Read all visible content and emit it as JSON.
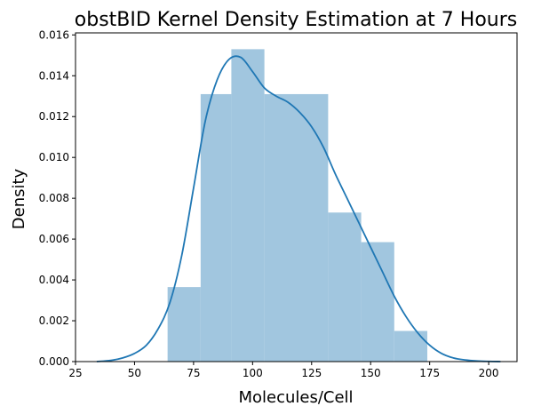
{
  "chart_data": {
    "type": "bar",
    "title": "obstBID Kernel Density Estimation at 7 Hours",
    "xlabel": "Molecules/Cell",
    "ylabel": "Density",
    "xlim": [
      25,
      212
    ],
    "ylim": [
      0,
      0.0161
    ],
    "x_ticks": [
      25,
      50,
      75,
      100,
      125,
      150,
      175,
      200
    ],
    "x_tick_labels": [
      "25",
      "50",
      "75",
      "100",
      "125",
      "150",
      "175",
      "200"
    ],
    "y_ticks": [
      0,
      0.002,
      0.004,
      0.006,
      0.008,
      0.01,
      0.012,
      0.014,
      0.016
    ],
    "y_tick_labels": [
      "0.000",
      "0.002",
      "0.004",
      "0.006",
      "0.008",
      "0.010",
      "0.012",
      "0.014",
      "0.016"
    ],
    "grid": false,
    "histogram": {
      "bins": [
        {
          "x0": 64,
          "x1": 78,
          "density": 0.00365
        },
        {
          "x0": 78,
          "x1": 91,
          "density": 0.0131
        },
        {
          "x0": 91,
          "x1": 105,
          "density": 0.0153
        },
        {
          "x0": 105,
          "x1": 132,
          "density": 0.0131
        },
        {
          "x0": 132,
          "x1": 146,
          "density": 0.0073
        },
        {
          "x0": 146,
          "x1": 160,
          "density": 0.00585
        },
        {
          "x0": 160,
          "x1": 174,
          "density": 0.0015
        }
      ],
      "color": "#a1c6df"
    },
    "kde": {
      "color": "#1f77b4",
      "x": [
        34,
        40,
        45,
        50,
        55,
        60,
        65,
        70,
        75,
        80,
        85,
        90,
        95,
        100,
        105,
        110,
        115,
        120,
        125,
        130,
        135,
        140,
        145,
        150,
        155,
        160,
        165,
        170,
        175,
        180,
        185,
        190,
        195,
        200,
        205
      ],
      "y": [
        0.0,
        6e-05,
        0.00018,
        0.0004,
        0.0008,
        0.0016,
        0.0029,
        0.0052,
        0.0085,
        0.0118,
        0.0138,
        0.0148,
        0.0149,
        0.0142,
        0.0134,
        0.013,
        0.0127,
        0.0122,
        0.0115,
        0.0105,
        0.0092,
        0.008,
        0.0068,
        0.0056,
        0.0044,
        0.0032,
        0.0022,
        0.0014,
        0.0008,
        0.0004,
        0.00018,
        8e-05,
        3e-05,
        1e-05,
        0.0
      ]
    }
  }
}
